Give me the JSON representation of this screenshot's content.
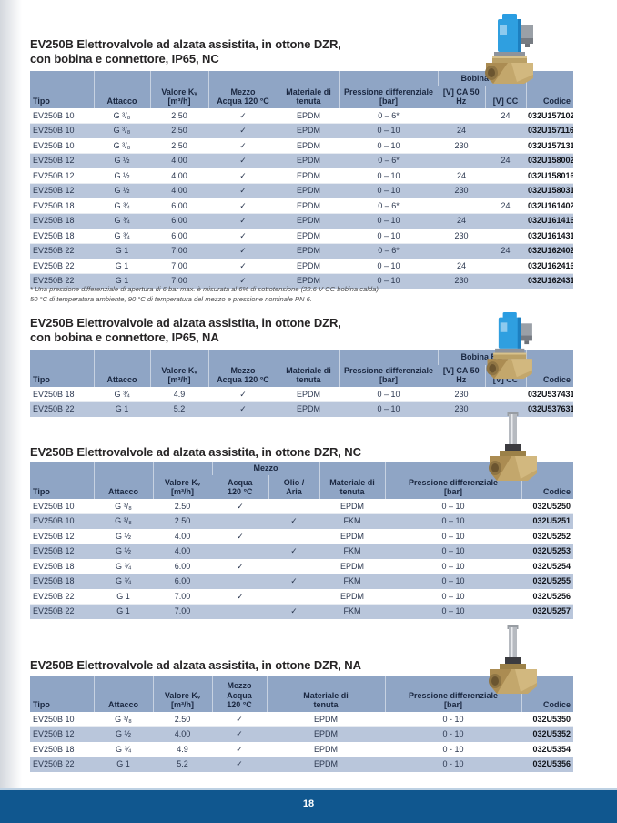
{
  "page": {
    "number": "18"
  },
  "colors": {
    "header_bg": "#8fa5c5",
    "row_alt_bg": "#b9c6db",
    "footer_bar": "#10578f",
    "header_text": "#1a2740",
    "body_text": "#2c3850"
  },
  "images": {
    "valve_with_coil": "solenoid-valve-brass-body-blue-coil-grey-connector",
    "valve_body_only": "solenoid-valve-brass-body-chrome-armature-tube"
  },
  "footnote_lines": [
    "* Una pressione differenziale di apertura di 6 bar max. è misurata al 6% di sottotensione (22.6 V CC bobina calda),",
    "50 °C di temperatura ambiente, 90 °C di temperatura del mezzo e pressione nominale PN 6."
  ],
  "sections": [
    {
      "title_lines": [
        "EV250B Elettrovalvole ad alzata assistita, in ottone DZR,",
        "con bobina e connettore, IP65, NC"
      ],
      "table": {
        "header": {
          "tipo": "Tipo",
          "attacco": "Attacco",
          "valore": [
            "Valore Kᵥ",
            "[m³/h]"
          ],
          "mezzo": [
            "Mezzo",
            "Acqua 120 °C"
          ],
          "materiale": [
            "Materiale di",
            "tenuta"
          ],
          "pressione": [
            "Pressione differenziale",
            "[bar]"
          ],
          "bobina": "Bobina BB",
          "ca": "[V] CA 50 Hz",
          "cc": "[V] CC",
          "codice": "Codice"
        },
        "rows": [
          [
            "EV250B 10",
            "G ³/₈",
            "2.50",
            "✓",
            "EPDM",
            "0 – 6*",
            "",
            "24",
            "032U157102"
          ],
          [
            "EV250B 10",
            "G ³/₈",
            "2.50",
            "✓",
            "EPDM",
            "0 – 10",
            "24",
            "",
            "032U157116"
          ],
          [
            "EV250B 10",
            "G ³/₈",
            "2.50",
            "✓",
            "EPDM",
            "0 – 10",
            "230",
            "",
            "032U157131"
          ],
          [
            "EV250B 12",
            "G ½",
            "4.00",
            "✓",
            "EPDM",
            "0 – 6*",
            "",
            "24",
            "032U158002"
          ],
          [
            "EV250B 12",
            "G ½",
            "4.00",
            "✓",
            "EPDM",
            "0 – 10",
            "24",
            "",
            "032U158016"
          ],
          [
            "EV250B 12",
            "G ½",
            "4.00",
            "✓",
            "EPDM",
            "0 – 10",
            "230",
            "",
            "032U158031"
          ],
          [
            "EV250B 18",
            "G ¾",
            "6.00",
            "✓",
            "EPDM",
            "0 – 6*",
            "",
            "24",
            "032U161402"
          ],
          [
            "EV250B 18",
            "G ¾",
            "6.00",
            "✓",
            "EPDM",
            "0 – 10",
            "24",
            "",
            "032U161416"
          ],
          [
            "EV250B 18",
            "G ¾",
            "6.00",
            "✓",
            "EPDM",
            "0 – 10",
            "230",
            "",
            "032U161431"
          ],
          [
            "EV250B 22",
            "G 1",
            "7.00",
            "✓",
            "EPDM",
            "0 – 6*",
            "",
            "24",
            "032U162402"
          ],
          [
            "EV250B 22",
            "G 1",
            "7.00",
            "✓",
            "EPDM",
            "0 – 10",
            "24",
            "",
            "032U162416"
          ],
          [
            "EV250B 22",
            "G 1",
            "7.00",
            "✓",
            "EPDM",
            "0 – 10",
            "230",
            "",
            "032U162431"
          ]
        ]
      }
    },
    {
      "title_lines": [
        "EV250B Elettrovalvole ad alzata assistita, in ottone DZR,",
        "con bobina e connettore, IP65, NA"
      ],
      "table": {
        "header": {
          "tipo": "Tipo",
          "attacco": "Attacco",
          "valore": [
            "Valore Kᵥ",
            "[m³/h]"
          ],
          "mezzo": [
            "Mezzo",
            "Acqua 120 °C"
          ],
          "materiale": [
            "Materiale di",
            "tenuta"
          ],
          "pressione": [
            "Pressione differenziale",
            "[bar]"
          ],
          "bobina": "Bobina BB",
          "ca": "[V] CA 50 Hz",
          "cc": "[V] CC",
          "codice": "Codice"
        },
        "rows": [
          [
            "EV250B 18",
            "G ¾",
            "4.9",
            "✓",
            "EPDM",
            "0 – 10",
            "230",
            "",
            "032U537431"
          ],
          [
            "EV250B 22",
            "G 1",
            "5.2",
            "✓",
            "EPDM",
            "0 – 10",
            "230",
            "",
            "032U537631"
          ]
        ]
      }
    },
    {
      "title_lines": [
        "EV250B Elettrovalvole ad alzata assistita, in ottone DZR, NC"
      ],
      "table": {
        "header": {
          "tipo": "Tipo",
          "attacco": "Attacco",
          "valore": [
            "Valore Kᵥ",
            "[m³/h]"
          ],
          "mezzo_group": "Mezzo",
          "acqua": [
            "Acqua",
            "120 °C"
          ],
          "olio": [
            "Olio /",
            "Aria"
          ],
          "materiale": [
            "Materiale di",
            "tenuta"
          ],
          "pressione": [
            "Pressione differenziale",
            "[bar]"
          ],
          "codice": "Codice"
        },
        "rows": [
          [
            "EV250B 10",
            "G ³/₈",
            "2.50",
            "✓",
            "",
            "EPDM",
            "0 – 10",
            "032U5250"
          ],
          [
            "EV250B 10",
            "G ³/₈",
            "2.50",
            "",
            "✓",
            "FKM",
            "0 – 10",
            "032U5251"
          ],
          [
            "EV250B 12",
            "G ½",
            "4.00",
            "✓",
            "",
            "EPDM",
            "0 – 10",
            "032U5252"
          ],
          [
            "EV250B 12",
            "G ½",
            "4.00",
            "",
            "✓",
            "FKM",
            "0 – 10",
            "032U5253"
          ],
          [
            "EV250B 18",
            "G ¾",
            "6.00",
            "✓",
            "",
            "EPDM",
            "0 – 10",
            "032U5254"
          ],
          [
            "EV250B 18",
            "G ¾",
            "6.00",
            "",
            "✓",
            "FKM",
            "0 – 10",
            "032U5255"
          ],
          [
            "EV250B 22",
            "G 1",
            "7.00",
            "✓",
            "",
            "EPDM",
            "0 – 10",
            "032U5256"
          ],
          [
            "EV250B 22",
            "G 1",
            "7.00",
            "",
            "✓",
            "FKM",
            "0 – 10",
            "032U5257"
          ]
        ]
      }
    },
    {
      "title_lines": [
        "EV250B Elettrovalvole ad alzata assistita, in ottone DZR, NA"
      ],
      "table": {
        "header": {
          "tipo": "Tipo",
          "attacco": "Attacco",
          "valore": [
            "Valore Kᵥ",
            "[m³/h]"
          ],
          "mezzo": [
            "Mezzo",
            "Acqua",
            "120 °C"
          ],
          "materiale": [
            "Materiale di",
            "tenuta"
          ],
          "pressione": [
            "Pressione differenziale",
            "[bar]"
          ],
          "codice": "Codice"
        },
        "rows": [
          [
            "EV250B 10",
            "G ³/₈",
            "2.50",
            "✓",
            "EPDM",
            "0 - 10",
            "032U5350"
          ],
          [
            "EV250B 12",
            "G ½",
            "4.00",
            "✓",
            "EPDM",
            "0 - 10",
            "032U5352"
          ],
          [
            "EV250B 18",
            "G ¾",
            "4.9",
            "✓",
            "EPDM",
            "0 - 10",
            "032U5354"
          ],
          [
            "EV250B 22",
            "G 1",
            "5.2",
            "✓",
            "EPDM",
            "0 - 10",
            "032U5356"
          ]
        ]
      }
    }
  ]
}
